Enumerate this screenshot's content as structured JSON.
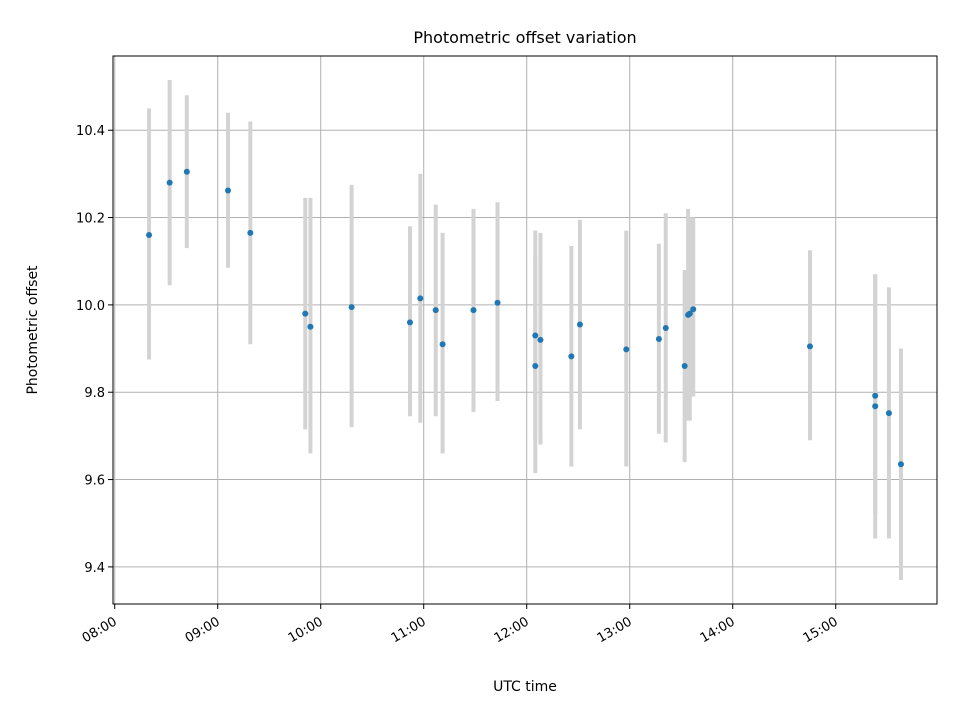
{
  "chart_data": {
    "type": "scatter",
    "title": "Photometric offset variation",
    "xlabel": "UTC time",
    "ylabel": "Photometric offset",
    "xlim": [
      "07:59",
      "15:59"
    ],
    "ylim": [
      9.315,
      10.57
    ],
    "grid": true,
    "x_ticks": [
      "08:00",
      "09:00",
      "10:00",
      "11:00",
      "12:00",
      "13:00",
      "14:00",
      "15:00"
    ],
    "y_ticks": [
      9.4,
      9.6,
      9.8,
      10.0,
      10.2,
      10.4
    ],
    "marker_color": "#1f77b4",
    "errorbar_color": "#d3d3d3",
    "points": [
      {
        "t": "08:20",
        "y": 10.16,
        "lo": 9.875,
        "hi": 10.45
      },
      {
        "t": "08:32",
        "y": 10.28,
        "lo": 10.045,
        "hi": 10.515
      },
      {
        "t": "08:42",
        "y": 10.305,
        "lo": 10.13,
        "hi": 10.48
      },
      {
        "t": "09:06",
        "y": 10.262,
        "lo": 10.085,
        "hi": 10.44
      },
      {
        "t": "09:19",
        "y": 10.165,
        "lo": 9.91,
        "hi": 10.42
      },
      {
        "t": "09:51",
        "y": 9.98,
        "lo": 9.715,
        "hi": 10.245
      },
      {
        "t": "09:54",
        "y": 9.95,
        "lo": 9.66,
        "hi": 10.245
      },
      {
        "t": "10:18",
        "y": 9.995,
        "lo": 9.72,
        "hi": 10.275
      },
      {
        "t": "10:52",
        "y": 9.96,
        "lo": 9.745,
        "hi": 10.18
      },
      {
        "t": "10:58",
        "y": 10.015,
        "lo": 9.73,
        "hi": 10.3
      },
      {
        "t": "11:07",
        "y": 9.988,
        "lo": 9.745,
        "hi": 10.23
      },
      {
        "t": "11:11",
        "y": 9.91,
        "lo": 9.66,
        "hi": 10.165
      },
      {
        "t": "11:29",
        "y": 9.988,
        "lo": 9.755,
        "hi": 10.22
      },
      {
        "t": "11:43",
        "y": 10.005,
        "lo": 9.78,
        "hi": 10.235
      },
      {
        "t": "12:05",
        "y": 9.93,
        "lo": 9.695,
        "hi": 10.17
      },
      {
        "t": "12:05",
        "y": 9.86,
        "lo": 9.615,
        "hi": 10.11
      },
      {
        "t": "12:08",
        "y": 9.92,
        "lo": 9.68,
        "hi": 10.165
      },
      {
        "t": "12:26",
        "y": 9.882,
        "lo": 9.63,
        "hi": 10.135
      },
      {
        "t": "12:31",
        "y": 9.955,
        "lo": 9.715,
        "hi": 10.195
      },
      {
        "t": "12:58",
        "y": 9.898,
        "lo": 9.63,
        "hi": 10.17
      },
      {
        "t": "13:17",
        "y": 9.922,
        "lo": 9.705,
        "hi": 10.14
      },
      {
        "t": "13:21",
        "y": 9.947,
        "lo": 9.685,
        "hi": 10.21
      },
      {
        "t": "13:32",
        "y": 9.86,
        "lo": 9.64,
        "hi": 10.08
      },
      {
        "t": "13:34",
        "y": 9.977,
        "lo": 9.735,
        "hi": 10.22
      },
      {
        "t": "13:35",
        "y": 9.98,
        "lo": 9.735,
        "hi": 10.2
      },
      {
        "t": "13:37",
        "y": 9.99,
        "lo": 9.79,
        "hi": 10.2
      },
      {
        "t": "14:45",
        "y": 9.905,
        "lo": 9.69,
        "hi": 10.125
      },
      {
        "t": "15:23",
        "y": 9.792,
        "lo": 9.52,
        "hi": 10.07
      },
      {
        "t": "15:23",
        "y": 9.768,
        "lo": 9.465,
        "hi": 10.07
      },
      {
        "t": "15:31",
        "y": 9.752,
        "lo": 9.465,
        "hi": 10.04
      },
      {
        "t": "15:38",
        "y": 9.635,
        "lo": 9.37,
        "hi": 9.9
      }
    ]
  }
}
